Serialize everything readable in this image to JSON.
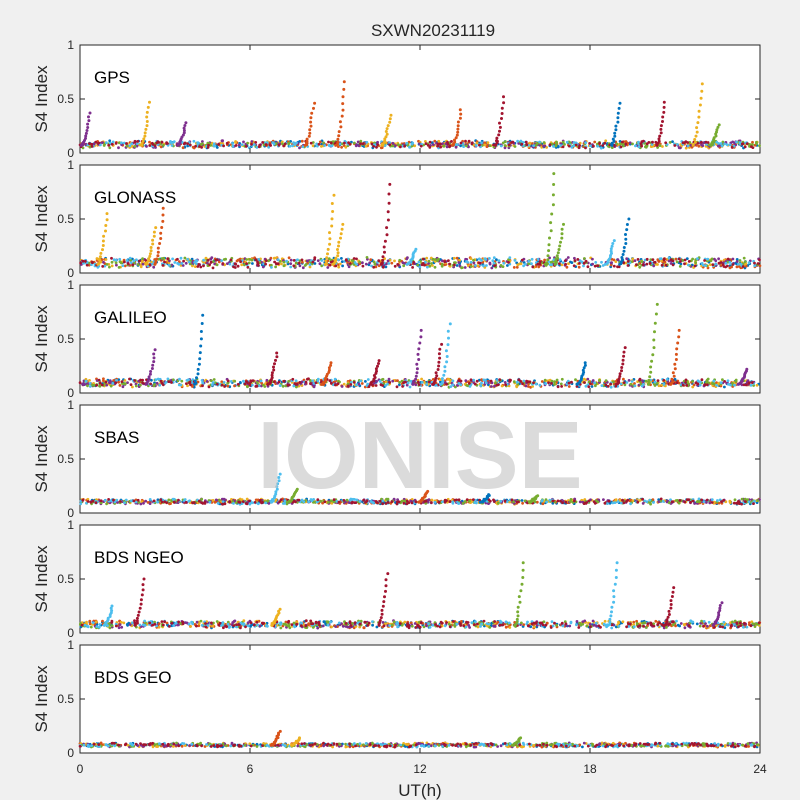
{
  "chart_data": {
    "type": "scatter",
    "title": "SXWN20231119",
    "xlabel": "UT(h)",
    "ylabel": "S4 Index",
    "xlim": [
      0,
      24
    ],
    "ylim": [
      0,
      1
    ],
    "xticks": [
      0,
      6,
      12,
      18,
      24
    ],
    "yticks": [
      0,
      0.5,
      1
    ],
    "ytick_labels": [
      "0",
      "0.5",
      "1"
    ],
    "watermark": "IONISE",
    "series_colors": [
      "#0072BD",
      "#D95319",
      "#EDB120",
      "#7E2F8E",
      "#77AC30",
      "#4DBEEE",
      "#A2142F"
    ],
    "panels": [
      {
        "name": "GPS",
        "baseline": 0.07,
        "baseline_variation": 0.05,
        "spikes": [
          {
            "x": 0.3,
            "y": 0.37,
            "color": "#7E2F8E"
          },
          {
            "x": 2.4,
            "y": 0.47,
            "color": "#EDB120"
          },
          {
            "x": 3.7,
            "y": 0.28,
            "color": "#7E2F8E"
          },
          {
            "x": 8.2,
            "y": 0.46,
            "color": "#D95319"
          },
          {
            "x": 9.3,
            "y": 0.66,
            "color": "#D95319"
          },
          {
            "x": 10.9,
            "y": 0.35,
            "color": "#EDB120"
          },
          {
            "x": 13.4,
            "y": 0.4,
            "color": "#D95319"
          },
          {
            "x": 14.9,
            "y": 0.52,
            "color": "#A2142F"
          },
          {
            "x": 19.0,
            "y": 0.46,
            "color": "#0072BD"
          },
          {
            "x": 20.6,
            "y": 0.47,
            "color": "#A2142F"
          },
          {
            "x": 21.9,
            "y": 0.64,
            "color": "#EDB120"
          },
          {
            "x": 22.5,
            "y": 0.26,
            "color": "#77AC30"
          }
        ]
      },
      {
        "name": "GLONASS",
        "baseline": 0.08,
        "baseline_variation": 0.08,
        "spikes": [
          {
            "x": 0.9,
            "y": 0.55,
            "color": "#EDB120"
          },
          {
            "x": 2.6,
            "y": 0.42,
            "color": "#EDB120"
          },
          {
            "x": 2.9,
            "y": 0.6,
            "color": "#D95319"
          },
          {
            "x": 8.9,
            "y": 0.72,
            "color": "#EDB120"
          },
          {
            "x": 9.2,
            "y": 0.45,
            "color": "#EDB120"
          },
          {
            "x": 10.9,
            "y": 0.82,
            "color": "#A2142F"
          },
          {
            "x": 11.8,
            "y": 0.22,
            "color": "#4DBEEE"
          },
          {
            "x": 16.7,
            "y": 0.92,
            "color": "#77AC30"
          },
          {
            "x": 17.0,
            "y": 0.45,
            "color": "#77AC30"
          },
          {
            "x": 19.3,
            "y": 0.5,
            "color": "#0072BD"
          },
          {
            "x": 18.8,
            "y": 0.3,
            "color": "#4DBEEE"
          }
        ]
      },
      {
        "name": "GALILEO",
        "baseline": 0.08,
        "baseline_variation": 0.06,
        "spikes": [
          {
            "x": 2.6,
            "y": 0.4,
            "color": "#7E2F8E"
          },
          {
            "x": 4.3,
            "y": 0.72,
            "color": "#0072BD"
          },
          {
            "x": 6.9,
            "y": 0.37,
            "color": "#A2142F"
          },
          {
            "x": 8.8,
            "y": 0.28,
            "color": "#D95319"
          },
          {
            "x": 10.5,
            "y": 0.3,
            "color": "#A2142F"
          },
          {
            "x": 12.0,
            "y": 0.58,
            "color": "#7E2F8E"
          },
          {
            "x": 12.7,
            "y": 0.45,
            "color": "#A2142F"
          },
          {
            "x": 13.0,
            "y": 0.64,
            "color": "#4DBEEE"
          },
          {
            "x": 17.8,
            "y": 0.28,
            "color": "#0072BD"
          },
          {
            "x": 19.2,
            "y": 0.42,
            "color": "#A2142F"
          },
          {
            "x": 20.3,
            "y": 0.82,
            "color": "#77AC30"
          },
          {
            "x": 21.1,
            "y": 0.58,
            "color": "#D95319"
          },
          {
            "x": 23.5,
            "y": 0.22,
            "color": "#7E2F8E"
          }
        ]
      },
      {
        "name": "SBAS",
        "baseline": 0.1,
        "baseline_variation": 0.03,
        "spikes": [
          {
            "x": 7.0,
            "y": 0.36,
            "color": "#4DBEEE"
          },
          {
            "x": 7.6,
            "y": 0.22,
            "color": "#77AC30"
          },
          {
            "x": 12.2,
            "y": 0.2,
            "color": "#D95319"
          },
          {
            "x": 14.4,
            "y": 0.17,
            "color": "#0072BD"
          },
          {
            "x": 16.1,
            "y": 0.16,
            "color": "#77AC30"
          }
        ]
      },
      {
        "name": "BDS NGEO",
        "baseline": 0.07,
        "baseline_variation": 0.05,
        "spikes": [
          {
            "x": 1.1,
            "y": 0.25,
            "color": "#4DBEEE"
          },
          {
            "x": 2.2,
            "y": 0.5,
            "color": "#A2142F"
          },
          {
            "x": 7.0,
            "y": 0.22,
            "color": "#EDB120"
          },
          {
            "x": 10.8,
            "y": 0.55,
            "color": "#A2142F"
          },
          {
            "x": 15.6,
            "y": 0.65,
            "color": "#77AC30"
          },
          {
            "x": 18.9,
            "y": 0.65,
            "color": "#4DBEEE"
          },
          {
            "x": 20.9,
            "y": 0.42,
            "color": "#A2142F"
          },
          {
            "x": 22.6,
            "y": 0.28,
            "color": "#7E2F8E"
          }
        ]
      },
      {
        "name": "BDS GEO",
        "baseline": 0.07,
        "baseline_variation": 0.02,
        "spikes": [
          {
            "x": 7.0,
            "y": 0.2,
            "color": "#D95319"
          },
          {
            "x": 7.7,
            "y": 0.14,
            "color": "#EDB120"
          },
          {
            "x": 15.5,
            "y": 0.14,
            "color": "#77AC30"
          }
        ]
      }
    ]
  }
}
